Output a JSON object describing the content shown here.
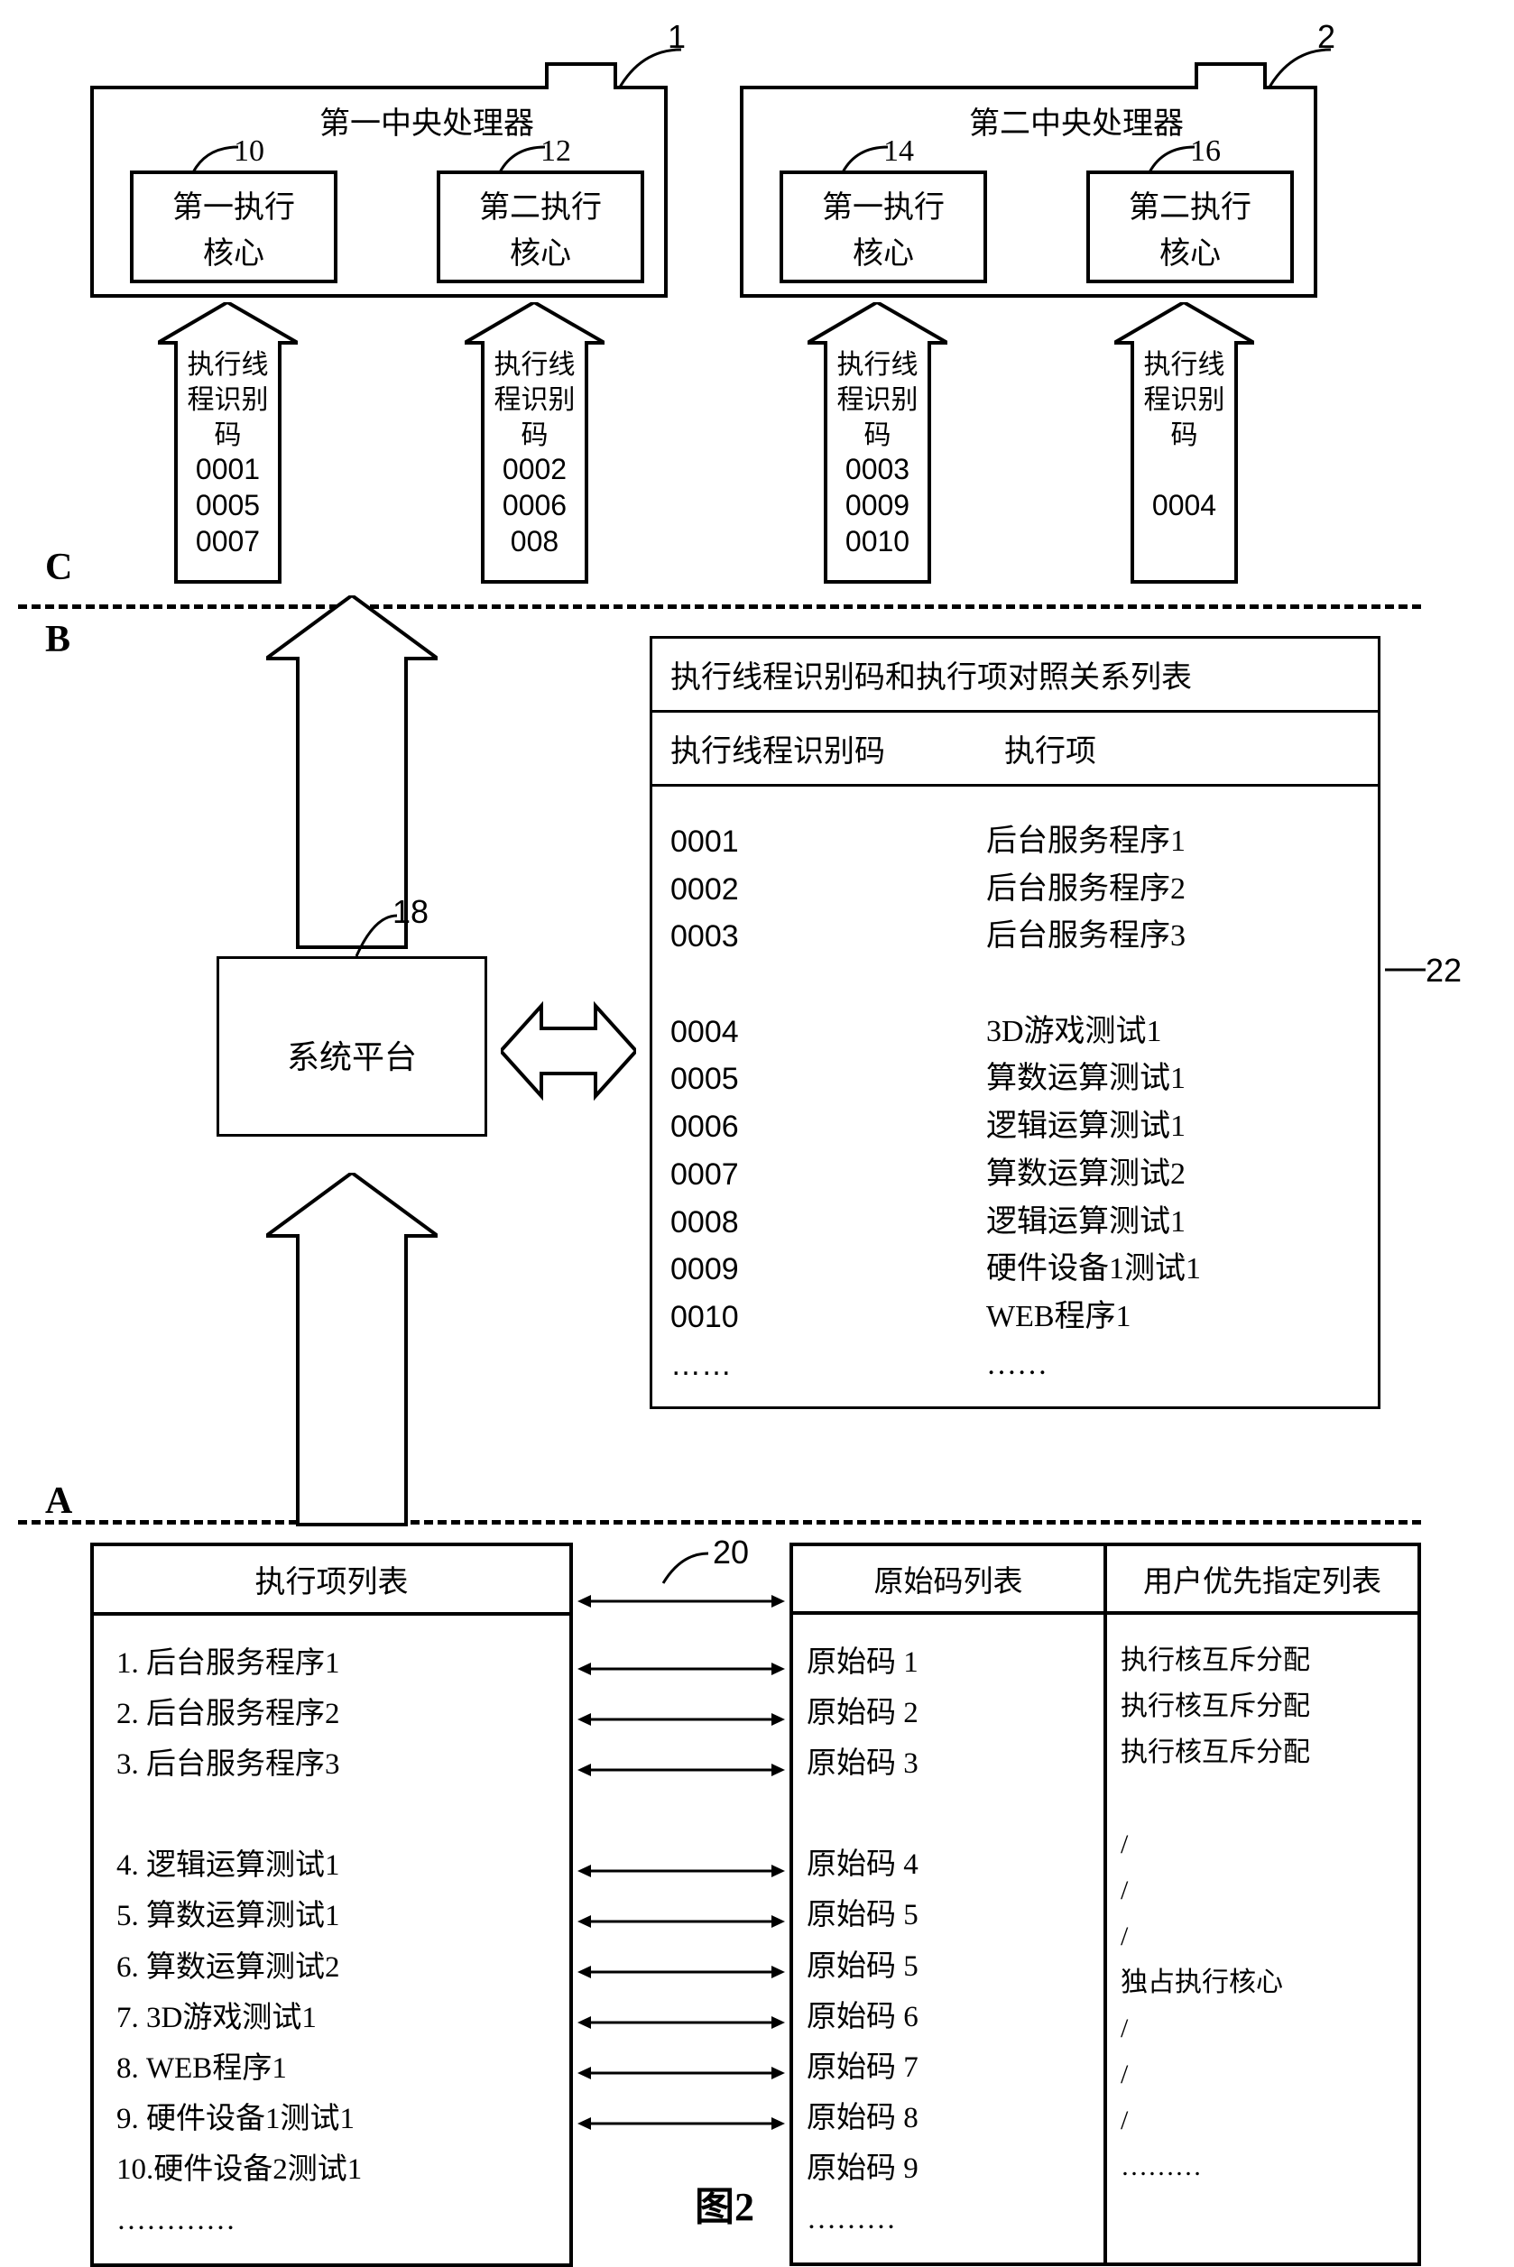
{
  "cpus": [
    {
      "label": "第一中央处理器",
      "num_label": "1",
      "core1": {
        "label": "第一执行\n核心",
        "num": "10"
      },
      "core2": {
        "label": "第二执行\n核心",
        "num": "12"
      }
    },
    {
      "label": "第二中央处理器",
      "num_label": "2",
      "core1": {
        "label": "第一执行\n核心",
        "num": "14"
      },
      "core2": {
        "label": "第二执行\n核心",
        "num": "16"
      }
    }
  ],
  "thread_arrows": [
    {
      "title": "执行线\n程识别\n码",
      "ids": "0001\n0005\n0007"
    },
    {
      "title": "执行线\n程识别\n码",
      "ids": "0002\n0006\n008"
    },
    {
      "title": "执行线\n程识别\n码",
      "ids": "0003\n0009\n0010"
    },
    {
      "title": "执行线\n程识别\n码",
      "ids": "\n0004"
    }
  ],
  "section_labels": {
    "a": "A",
    "b": "B",
    "c": "C"
  },
  "platform": {
    "label": "系统平台",
    "num": "18"
  },
  "mapping_table": {
    "num": "22",
    "header": "执行线程识别码和执行项对照关系列表",
    "sub1": "执行线程识别码",
    "sub2": "执行项",
    "col1": [
      "0001",
      "0002",
      "0003",
      "",
      "0004",
      "0005",
      "0006",
      "0007",
      "0008",
      "0009",
      "0010",
      "……"
    ],
    "col2": [
      "后台服务程序1",
      "后台服务程序2",
      "后台服务程序3",
      "",
      "3D游戏测试1",
      "算数运算测试1",
      "逻辑运算测试1",
      "算数运算测试2",
      "逻辑运算测试1",
      "硬件设备1测试1",
      "WEB程序1",
      "……"
    ]
  },
  "exec_list": {
    "num": "20",
    "header": "执行项列表",
    "items": [
      "1. 后台服务程序1",
      "2. 后台服务程序2",
      "3. 后台服务程序3",
      "",
      "4. 逻辑运算测试1",
      "5. 算数运算测试1",
      "6. 算数运算测试2",
      "7. 3D游戏测试1",
      "8. WEB程序1",
      "9. 硬件设备1测试1",
      "10.硬件设备2测试1",
      "…………"
    ]
  },
  "source_list": {
    "header1": "原始码列表",
    "header2": "用户优先指定列表",
    "col1": [
      "原始码 1",
      "原始码 2",
      "原始码 3",
      "",
      "原始码 4",
      "原始码 5",
      "原始码 5",
      "原始码 6",
      "原始码 7",
      "原始码 8",
      "原始码 9",
      "………"
    ],
    "col2": [
      "执行核互斥分配",
      "执行核互斥分配",
      "执行核互斥分配",
      "",
      "/",
      "/",
      "/",
      "独占执行核心",
      "/",
      "/",
      "/",
      "………"
    ]
  },
  "figure_label": "图2",
  "colors": {
    "stroke": "#000000",
    "bg": "#ffffff"
  }
}
